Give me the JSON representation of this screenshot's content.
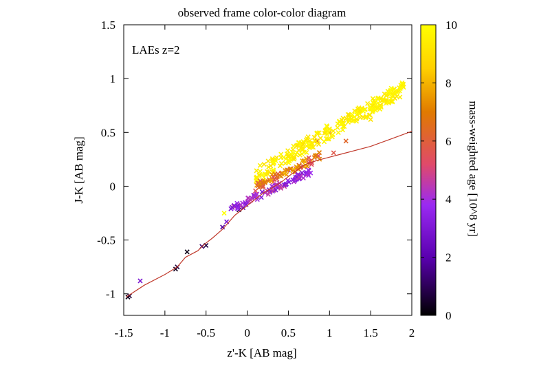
{
  "chart_data": {
    "type": "scatter",
    "title": "observed frame color-color diagram",
    "xlabel": "z'-K [AB mag]",
    "ylabel": "J-K [AB mag]",
    "annotation": "LAEs z=2",
    "xlim": [
      -1.5,
      2
    ],
    "ylim": [
      -1.2,
      1.5
    ],
    "xticks": [
      -1.5,
      -1,
      -0.5,
      0,
      0.5,
      1,
      1.5,
      2
    ],
    "xtick_labels": [
      "-1.5",
      "-1",
      "-0.5",
      "0",
      "0.5",
      "1",
      "1.5",
      "2"
    ],
    "yticks": [
      -1,
      -0.5,
      0,
      0.5,
      1,
      1.5
    ],
    "ytick_labels": [
      "-1",
      "-0.5",
      "0",
      "0.5",
      "1",
      "1.5"
    ],
    "grid": false,
    "colorbar": {
      "label": "mass-weighted age [10^8 yr]",
      "range": [
        0,
        10
      ],
      "ticks": [
        0,
        2,
        4,
        6,
        8,
        10
      ],
      "tick_labels": [
        "0",
        "2",
        "4",
        "6",
        "8",
        "10"
      ],
      "colormap": [
        "#000000",
        "#5a00b0",
        "#9a2af2",
        "#e04a6a",
        "#e07a00",
        "#ffd000",
        "#ffff00"
      ]
    },
    "line_color": "#c0392b",
    "track": {
      "x": [
        -1.47,
        -1.25,
        -1.0,
        -0.85,
        -0.75,
        -0.6,
        -0.52,
        -0.42,
        -0.3,
        -0.15,
        0.0,
        0.2,
        0.4,
        0.55,
        0.7,
        0.85,
        0.95,
        1.2,
        1.5,
        1.75,
        2.0
      ],
      "y": [
        -1.03,
        -0.92,
        -0.82,
        -0.75,
        -0.66,
        -0.6,
        -0.54,
        -0.48,
        -0.4,
        -0.27,
        -0.18,
        -0.06,
        0.03,
        0.12,
        0.2,
        0.24,
        0.26,
        0.31,
        0.37,
        0.44,
        0.51
      ]
    },
    "seed_points": [
      {
        "x": -1.45,
        "y": -1.03,
        "age": 0.2
      },
      {
        "x": -1.43,
        "y": -1.02,
        "age": 0.5
      },
      {
        "x": -1.3,
        "y": -0.88,
        "age": 2.5
      },
      {
        "x": -0.87,
        "y": -0.77,
        "age": 0.3
      },
      {
        "x": -0.85,
        "y": -0.75,
        "age": 0.6
      },
      {
        "x": -0.73,
        "y": -0.61,
        "age": 0.2
      },
      {
        "x": -0.55,
        "y": -0.56,
        "age": 1.0
      },
      {
        "x": -0.5,
        "y": -0.55,
        "age": 0.6
      },
      {
        "x": -0.3,
        "y": -0.38,
        "age": 1.5
      },
      {
        "x": -0.25,
        "y": -0.33,
        "age": 2.5
      },
      {
        "x": -0.28,
        "y": -0.25,
        "age": 10
      },
      {
        "x": -0.1,
        "y": -0.22,
        "age": 0.5
      },
      {
        "x": -0.05,
        "y": -0.2,
        "age": 2.0
      },
      {
        "x": 1.0,
        "y": 0.5,
        "age": 5.5
      },
      {
        "x": 1.05,
        "y": 0.31,
        "age": 5.5
      },
      {
        "x": 1.2,
        "y": 0.42,
        "age": 6.0
      },
      {
        "x": 0.85,
        "y": 0.42,
        "age": 6.0
      },
      {
        "x": 1.1,
        "y": 0.58,
        "age": 9.5
      },
      {
        "x": 1.5,
        "y": 0.62,
        "age": 9.0
      },
      {
        "x": 1.65,
        "y": 0.8,
        "age": 9.0
      },
      {
        "x": 1.82,
        "y": 0.87,
        "age": 10
      },
      {
        "x": 1.9,
        "y": 0.92,
        "age": 9.5
      },
      {
        "x": 0.3,
        "y": 0.0,
        "age": 3.5
      },
      {
        "x": 0.5,
        "y": 0.15,
        "age": 4.0
      },
      {
        "x": 0.65,
        "y": 0.18,
        "age": 4.5
      },
      {
        "x": 0.2,
        "y": 0.05,
        "age": 9.0
      },
      {
        "x": 0.1,
        "y": -0.1,
        "age": 3.0
      }
    ]
  }
}
